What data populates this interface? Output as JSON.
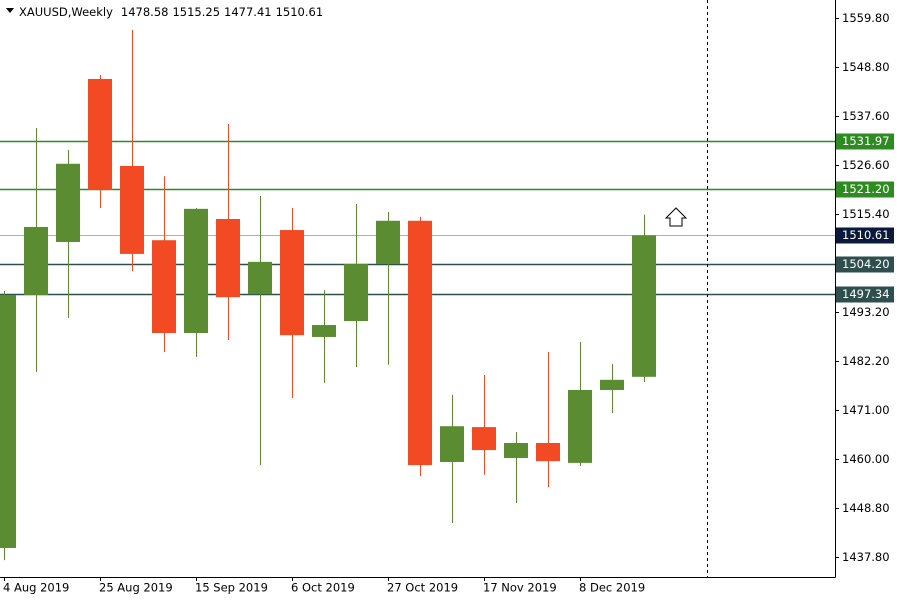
{
  "chart_data": {
    "type": "candlestick",
    "symbol": "XAUUSD,Weekly",
    "categories": [
      "4 Aug 2019",
      null,
      null,
      "25 Aug 2019",
      null,
      null,
      "15 Sep 2019",
      null,
      null,
      "6 Oct 2019",
      null,
      null,
      "27 Oct 2019",
      null,
      null,
      "17 Nov 2019",
      null,
      null,
      "8 Dec 2019",
      null,
      null
    ],
    "open": [
      1439.84,
      1497.1,
      1509.1,
      1546.0,
      1526.3,
      1509.5,
      1488.5,
      1514.3,
      1497.3,
      1511.8,
      1487.6,
      1491.2,
      1504.1,
      1513.9,
      1459.3,
      1467.2,
      1460.2,
      1463.6,
      1459.1,
      1475.6,
      1478.58
    ],
    "high": [
      1498.0,
      1534.9,
      1529.9,
      1546.9,
      1557.1,
      1524.0,
      1516.8,
      1535.8,
      1519.5,
      1516.8,
      1498.2,
      1517.7,
      1515.9,
      1514.8,
      1474.5,
      1479.0,
      1466.1,
      1484.2,
      1486.5,
      1481.5,
      1515.25
    ],
    "low": [
      1437.1,
      1479.7,
      1491.9,
      1516.8,
      1502.5,
      1484.2,
      1483.1,
      1486.9,
      1458.6,
      1473.8,
      1477.2,
      1480.8,
      1481.3,
      1456.1,
      1445.5,
      1456.4,
      1450.0,
      1453.6,
      1458.4,
      1470.4,
      1477.41
    ],
    "close": [
      1497.1,
      1512.5,
      1526.8,
      1520.9,
      1506.4,
      1488.5,
      1516.6,
      1496.6,
      1504.6,
      1488.0,
      1490.3,
      1504.1,
      1513.9,
      1458.6,
      1467.4,
      1462.0,
      1463.6,
      1459.5,
      1475.6,
      1477.9,
      1510.61
    ],
    "up_color": "#5b8c32",
    "down_color": "#f24b24",
    "ylim": [
      1433.27,
      1563.87
    ],
    "yticks": [
      {
        "value": 1437.8,
        "label": "1437.80"
      },
      {
        "value": 1448.8,
        "label": "1448.80"
      },
      {
        "value": 1460.0,
        "label": "1460.00"
      },
      {
        "value": 1471.0,
        "label": "1471.00"
      },
      {
        "value": 1482.2,
        "label": "1482.20"
      },
      {
        "value": 1493.2,
        "label": "1493.20"
      },
      {
        "value": 1515.4,
        "label": "1515.40"
      },
      {
        "value": 1526.6,
        "label": "1526.60"
      },
      {
        "value": 1537.6,
        "label": "1537.60"
      },
      {
        "value": 1548.8,
        "label": "1548.80"
      },
      {
        "value": 1559.8,
        "label": "1559.80"
      }
    ],
    "hlines": [
      {
        "value": 1531.97,
        "label": "1531.97",
        "color": "#2e8b22"
      },
      {
        "value": 1521.2,
        "label": "1521.20",
        "color": "#2e8b22"
      },
      {
        "value": 1510.61,
        "label": "1510.61",
        "color": "#0b1a3c",
        "line_color": "#b0b0b0"
      },
      {
        "value": 1504.2,
        "label": "1504.20",
        "color": "#2f4f4f"
      },
      {
        "value": 1497.34,
        "label": "1497.34",
        "color": "#2f4f4f"
      }
    ]
  }
}
